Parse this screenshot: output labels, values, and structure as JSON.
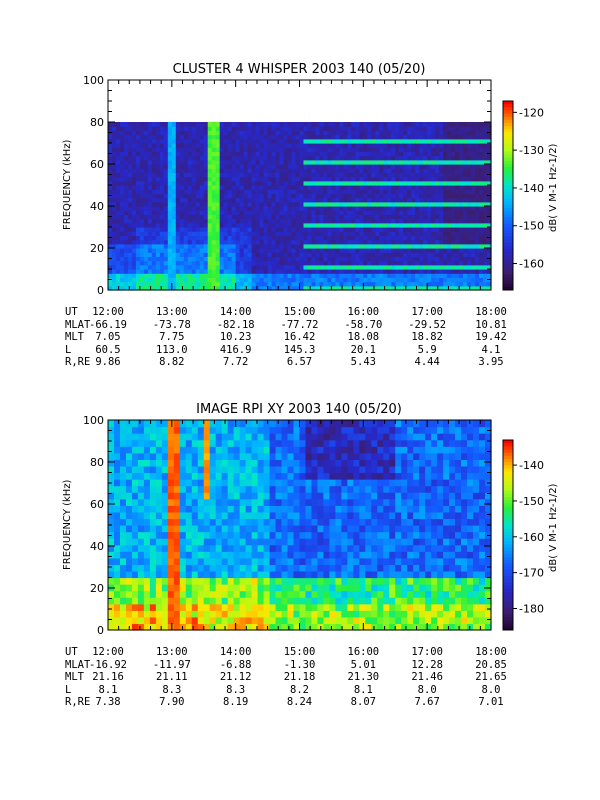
{
  "panels": [
    {
      "title": "CLUSTER 4 WHISPER 2003 140 (05/20)",
      "ylabel": "FREQUENCY (kHz)",
      "ytick_labels": [
        "0",
        "20",
        "40",
        "60",
        "80",
        "100"
      ],
      "cbar_label": "dB( V M⁻¹ Hz⁻¹ᐟ²)",
      "cbar_text": "dB( V M-1 Hz-1/2)",
      "cbar_ticks": [
        "-120",
        "-130",
        "-140",
        "-150",
        "-160"
      ],
      "eph": {
        "UT": [
          "12:00",
          "13:00",
          "14:00",
          "15:00",
          "16:00",
          "17:00",
          "18:00"
        ],
        "MLAT": [
          "-66.19",
          "-73.78",
          "-82.18",
          "-77.72",
          "-58.70",
          "-29.52",
          "10.81"
        ],
        "MLT": [
          "7.05",
          "7.75",
          "10.23",
          "16.42",
          "18.08",
          "18.82",
          "19.42"
        ],
        "L": [
          "60.5",
          "113.0",
          "416.9",
          "145.3",
          "20.1",
          "5.9",
          "4.1"
        ],
        "R,RE": [
          "9.86",
          "8.82",
          "7.72",
          "6.57",
          "5.43",
          "4.44",
          "3.95"
        ]
      }
    },
    {
      "title": "IMAGE RPI XY 2003 140 (05/20)",
      "ylabel": "FREQUENCY (kHz)",
      "ytick_labels": [
        "0",
        "20",
        "40",
        "60",
        "80",
        "100"
      ],
      "cbar_text": "dB( V M-1 Hz-1/2)",
      "cbar_ticks": [
        "-140",
        "-150",
        "-160",
        "-170",
        "-180"
      ],
      "eph": {
        "UT": [
          "12:00",
          "13:00",
          "14:00",
          "15:00",
          "16:00",
          "17:00",
          "18:00"
        ],
        "MLAT": [
          "-16.92",
          "-11.97",
          "-6.88",
          "-1.30",
          "5.01",
          "12.28",
          "20.85"
        ],
        "MLT": [
          "21.16",
          "21.11",
          "21.12",
          "21.18",
          "21.30",
          "21.46",
          "21.65"
        ],
        "L": [
          "8.1",
          "8.3",
          "8.3",
          "8.2",
          "8.1",
          "8.0",
          "8.0"
        ],
        "R,RE": [
          "7.38",
          "7.90",
          "8.19",
          "8.24",
          "8.07",
          "7.67",
          "7.01"
        ]
      }
    }
  ],
  "eph_row_labels": [
    "UT",
    "MLAT",
    "MLT",
    "L",
    "R,RE"
  ],
  "chart_data": [
    {
      "type": "heatmap",
      "title": "CLUSTER 4 WHISPER 2003 140 (05/20)",
      "xlabel": "",
      "ylabel": "FREQUENCY (kHz)",
      "x_tick_labels": [
        "12:00",
        "13:00",
        "14:00",
        "15:00",
        "16:00",
        "17:00",
        "18:00"
      ],
      "ylim": [
        0,
        100
      ],
      "data_ylim": [
        0,
        80
      ],
      "colorbar": {
        "label": "dB( V M-1 Hz-1/2)",
        "range": [
          -167,
          -117
        ],
        "ticks": [
          -120,
          -130,
          -140,
          -150,
          -160
        ]
      },
      "features": [
        {
          "kind": "vertical_band",
          "center": "13:37",
          "freq_range": [
            0,
            80
          ],
          "level": -135
        },
        {
          "kind": "vertical_band",
          "center": "12:58",
          "freq_range": [
            0,
            80
          ],
          "level": -145
        },
        {
          "kind": "harmonic_bands",
          "time_range": [
            "15:00",
            "18:00"
          ],
          "level": -140
        },
        {
          "kind": "low_freq_emission",
          "time_range": [
            "12:00",
            "18:00"
          ],
          "freq_range": [
            0,
            20
          ],
          "level": -145
        }
      ]
    },
    {
      "type": "heatmap",
      "title": "IMAGE RPI XY 2003 140 (05/20)",
      "xlabel": "",
      "ylabel": "FREQUENCY (kHz)",
      "x_tick_labels": [
        "12:00",
        "13:00",
        "14:00",
        "15:00",
        "16:00",
        "17:00",
        "18:00"
      ],
      "ylim": [
        0,
        100
      ],
      "colorbar": {
        "label": "dB( V M-1 Hz-1/2)",
        "range": [
          -186,
          -133
        ],
        "ticks": [
          -140,
          -150,
          -160,
          -170,
          -180
        ]
      },
      "features": [
        {
          "kind": "vertical_band",
          "center": "13:00",
          "freq_range": [
            0,
            100
          ],
          "level": -138
        },
        {
          "kind": "vertical_band",
          "center": "13:30",
          "freq_range": [
            60,
            100
          ],
          "level": -140
        },
        {
          "kind": "low_freq_emission",
          "time_range": [
            "12:00",
            "18:00"
          ],
          "freq_range": [
            0,
            25
          ],
          "level": -158
        }
      ]
    }
  ],
  "colors": {
    "background": "#ffffff",
    "axes": "#000000",
    "cb_low": "#2a0a4a",
    "cb_high": "#ff0000"
  }
}
